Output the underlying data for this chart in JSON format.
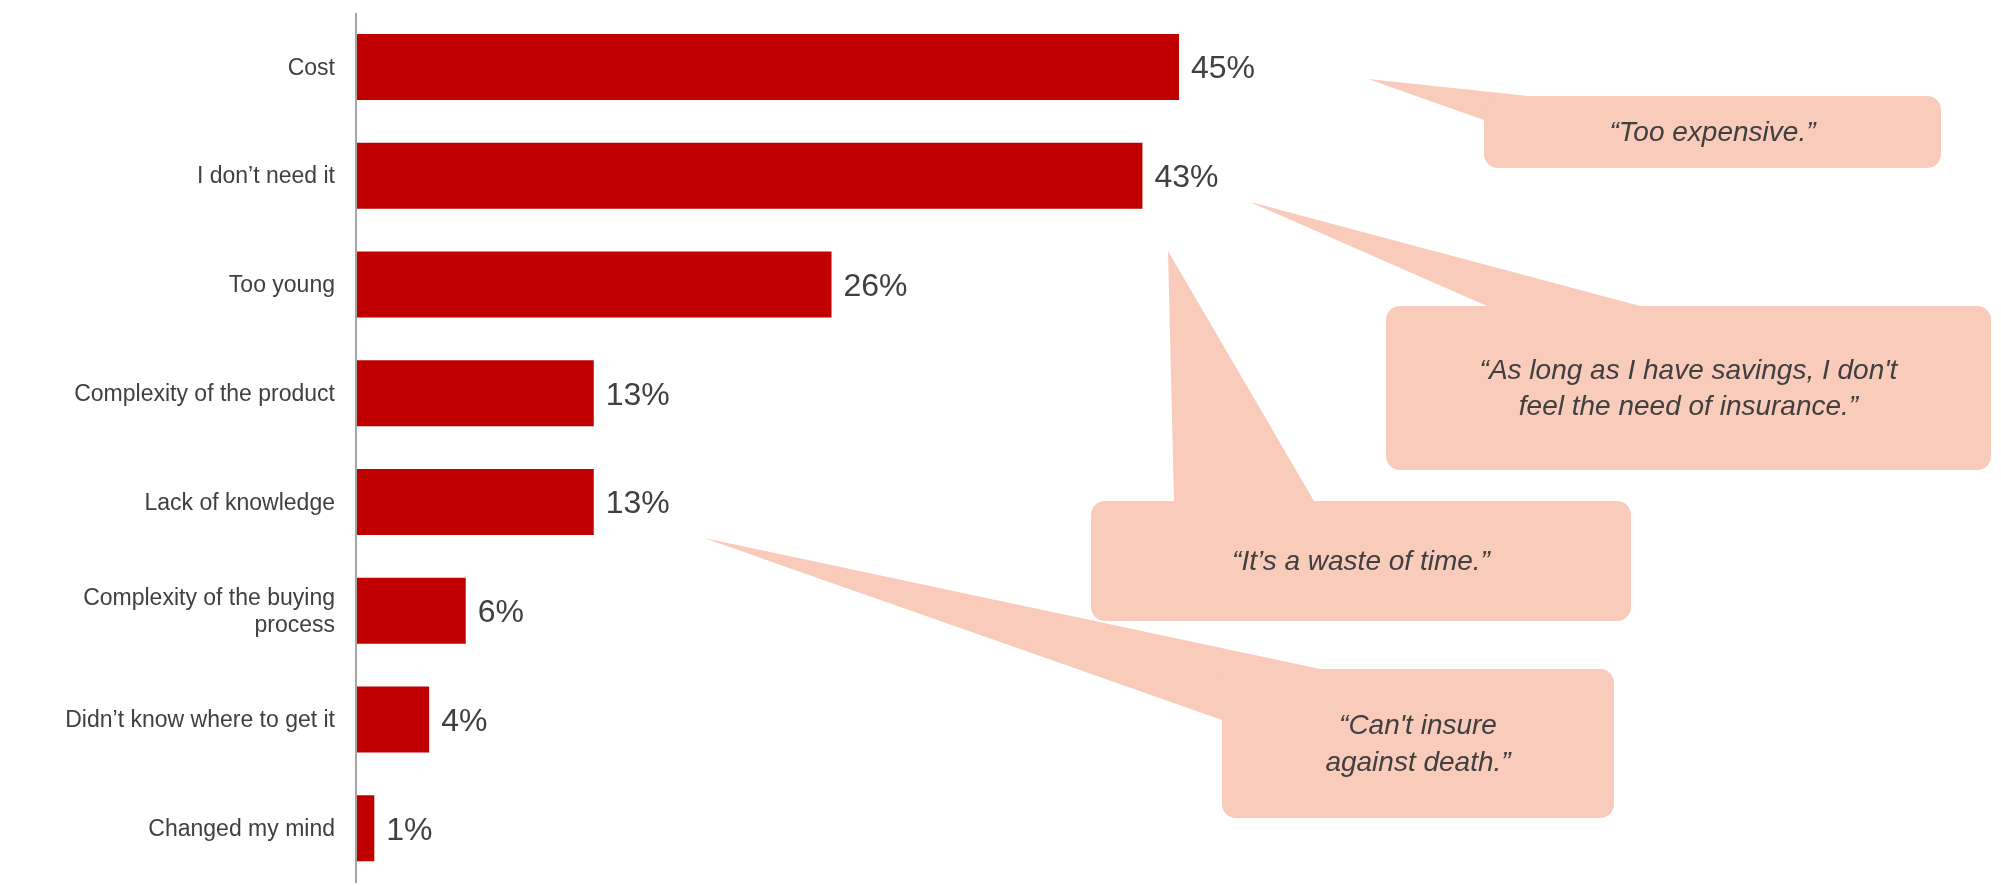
{
  "chart_data": {
    "type": "bar",
    "orientation": "horizontal",
    "categories": [
      "Cost",
      "I don’t need it",
      "Too young",
      "Complexity of the product",
      "Lack of knowledge",
      "Complexity of the buying process",
      "Didn’t know where to get it",
      "Changed my mind"
    ],
    "values": [
      45,
      43,
      26,
      13,
      13,
      6,
      4,
      1
    ],
    "value_labels": [
      "45%",
      "43%",
      "26%",
      "13%",
      "13%",
      "6%",
      "4%",
      "1%"
    ],
    "color": "#c00000",
    "annotations": [
      "“Too expensive.”",
      "“As long as I have savings, I don't feel the need of insurance.”",
      "“It’s a waste of time.”",
      "“Can't insure against death.”"
    ]
  }
}
